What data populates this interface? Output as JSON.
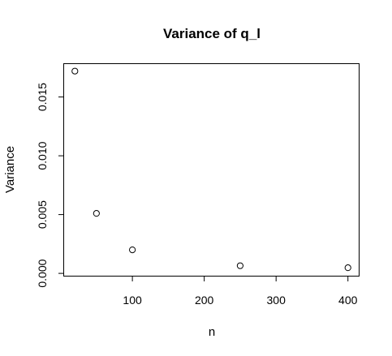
{
  "chart_data": {
    "type": "scatter",
    "title": "Variance of q_l",
    "xlabel": "n",
    "ylabel": "Variance",
    "x": [
      20,
      50,
      100,
      250,
      400
    ],
    "y": [
      0.0172,
      0.0051,
      0.002,
      0.00065,
      0.00048
    ],
    "xlim": [
      5,
      415
    ],
    "ylim": [
      -0.0002,
      0.0178
    ],
    "xticks": [
      100,
      200,
      300,
      400
    ],
    "xtick_labels": [
      "100",
      "200",
      "300",
      "400"
    ],
    "yticks": [
      0,
      0.005,
      0.01,
      0.015
    ],
    "ytick_labels": [
      "0.000",
      "0.005",
      "0.010",
      "0.015"
    ],
    "marker": "open-circle",
    "grid": false
  }
}
